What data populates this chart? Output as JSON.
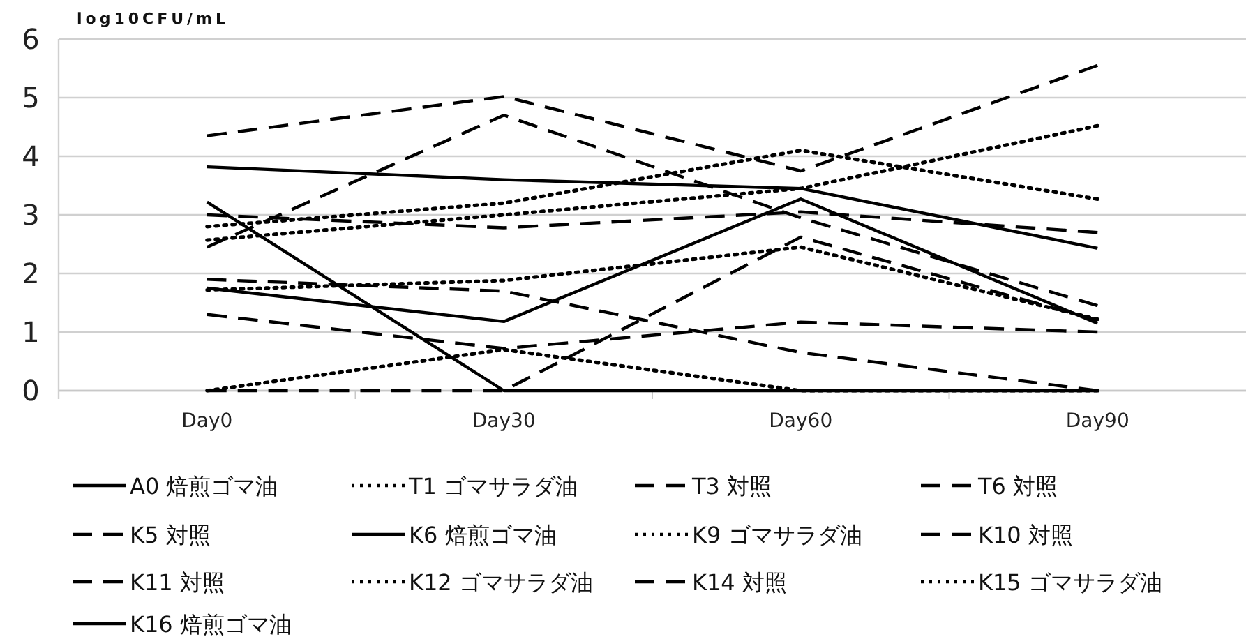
{
  "chart_data": {
    "type": "line",
    "ylabel": "log10CFU/mL",
    "categories": [
      "Day0",
      "Day30",
      "Day60",
      "Day90"
    ],
    "ylim": [
      0,
      6
    ],
    "yticks": [
      0,
      1,
      2,
      3,
      4,
      5,
      6
    ],
    "grid": "y",
    "legend": "bottom",
    "marker": "none",
    "series": [
      {
        "name": "A0 焙煎ゴマ油",
        "color": "#000000",
        "line_style": "solid",
        "values": [
          3.82,
          3.6,
          3.45,
          2.43
        ]
      },
      {
        "name": "T1 ゴマサラダ油",
        "color": "#000000",
        "line_style": "dotted",
        "values": [
          2.8,
          3.2,
          4.1,
          3.27
        ]
      },
      {
        "name": "T3 対照",
        "color": "#000000",
        "line_style": "dashed",
        "values": [
          4.35,
          5.02,
          3.75,
          5.55
        ]
      },
      {
        "name": "T6 対照",
        "color": "#000000",
        "line_style": "dashed",
        "values": [
          2.45,
          4.7,
          2.95,
          1.45
        ]
      },
      {
        "name": "K5 対照",
        "color": "#000000",
        "line_style": "dashed",
        "values": [
          3.0,
          2.78,
          3.05,
          2.7
        ]
      },
      {
        "name": "K6 焙煎ゴマ油",
        "color": "#000000",
        "line_style": "solid",
        "values": [
          1.75,
          1.18,
          3.27,
          1.15
        ]
      },
      {
        "name": "K9 ゴマサラダ油",
        "color": "#000000",
        "line_style": "dotted",
        "values": [
          1.72,
          1.88,
          2.45,
          1.22
        ]
      },
      {
        "name": "K10 対照",
        "color": "#000000",
        "line_style": "dashed",
        "values": [
          1.9,
          1.7,
          0.65,
          0
        ]
      },
      {
        "name": "K11 対照",
        "color": "#000000",
        "line_style": "dashed",
        "values": [
          1.3,
          0.72,
          1.17,
          1.0
        ]
      },
      {
        "name": "K12 ゴマサラダ油",
        "color": "#000000",
        "line_style": "dotted",
        "values": [
          2.57,
          3.0,
          3.45,
          4.52
        ]
      },
      {
        "name": "K14 対照",
        "color": "#000000",
        "line_style": "dashed",
        "values": [
          0,
          0,
          2.62,
          1.2
        ]
      },
      {
        "name": "K15 ゴマサラダ油",
        "color": "#000000",
        "line_style": "dotted",
        "values": [
          0,
          0.7,
          0,
          0
        ]
      },
      {
        "name": "K16 焙煎ゴマ油",
        "color": "#000000",
        "line_style": "solid",
        "values": [
          3.22,
          0,
          0,
          0
        ]
      }
    ]
  }
}
